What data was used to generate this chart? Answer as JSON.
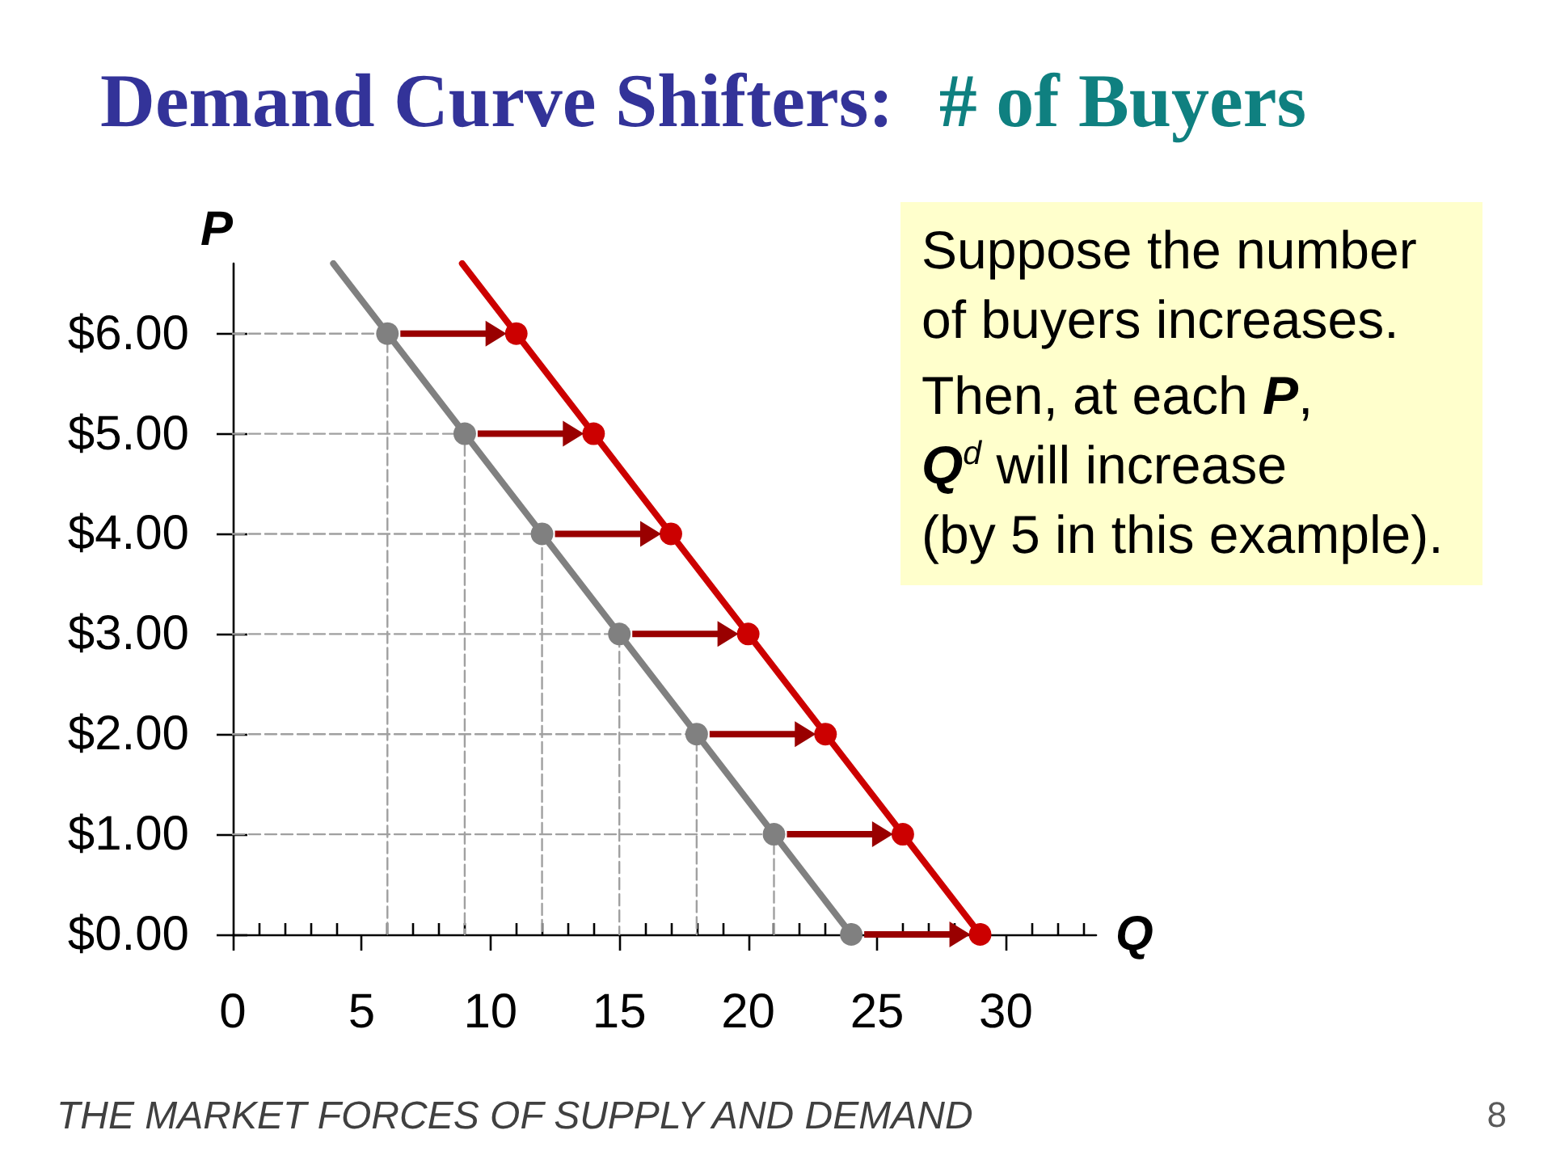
{
  "chart_data": {
    "type": "line",
    "title": "Demand Curve Shifters:",
    "subtitle": "# of Buyers",
    "xlabel": "Q",
    "ylabel": "P",
    "annotations": [
      "Suppose the number\nof buyers increases.",
      "Then, at each P,\nQ$^{d}$ will increase\n(by 5 in this example).",
      "THE MARKET FORCES OF SUPPLY AND DEMAND",
      "8"
    ],
    "xlim": [
      0,
      33.5
    ],
    "xticks": [
      0,
      {
        "value": 1,
        "label": null
      },
      {
        "value": 2,
        "label": null
      },
      {
        "value": 3,
        "label": null
      },
      {
        "value": 4,
        "label": null
      },
      5,
      {
        "value": 6,
        "label": null
      },
      {
        "value": 7,
        "label": null
      },
      {
        "value": 8,
        "label": null
      },
      {
        "value": 9,
        "label": null
      },
      10,
      {
        "value": 11,
        "label": null
      },
      {
        "value": 12,
        "label": null
      },
      {
        "value": 13,
        "label": null
      },
      {
        "value": 14,
        "label": null
      },
      15,
      {
        "value": 16,
        "label": null
      },
      {
        "value": 17,
        "label": null
      },
      {
        "value": 18,
        "label": null
      },
      {
        "value": 19,
        "label": null
      },
      20,
      {
        "value": 21,
        "label": null
      },
      {
        "value": 22,
        "label": null
      },
      {
        "value": 23,
        "label": null
      },
      {
        "value": 24,
        "label": null
      },
      25,
      {
        "value": 26,
        "label": null
      },
      {
        "value": 27,
        "label": null
      },
      {
        "value": 28,
        "label": null
      },
      {
        "value": 29,
        "label": null
      },
      30,
      {
        "value": 31,
        "label": null
      },
      {
        "value": 32,
        "label": null
      },
      {
        "value": 33,
        "label": null
      }
    ],
    "ylim": [
      0,
      6.7
    ],
    "yticks": [
      {
        "value": 0,
        "label": "$0.00"
      },
      {
        "value": 1,
        "label": "$1.00"
      },
      {
        "value": 2,
        "label": "$2.00"
      },
      {
        "value": 3,
        "label": "$3.00"
      },
      {
        "value": 4,
        "label": "$4.00"
      },
      {
        "value": 5,
        "label": "$5.00"
      },
      {
        "value": 6,
        "label": "$6.00"
      }
    ],
    "series": [
      {
        "color": "#a0a0a0",
        "line_style": "dashed",
        "marker": "none",
        "x": [
          0,
          6,
          6
        ],
        "values": [
          6,
          6,
          0
        ]
      },
      {
        "color": "#a0a0a0",
        "line_style": "dashed",
        "marker": "none",
        "x": [
          0,
          9,
          9
        ],
        "values": [
          5,
          5,
          0
        ]
      },
      {
        "color": "#a0a0a0",
        "line_style": "dashed",
        "marker": "none",
        "x": [
          0,
          12,
          12
        ],
        "values": [
          4,
          4,
          0
        ]
      },
      {
        "color": "#a0a0a0",
        "line_style": "dashed",
        "marker": "none",
        "x": [
          0,
          15,
          15
        ],
        "values": [
          3,
          3,
          0
        ]
      },
      {
        "color": "#a0a0a0",
        "line_style": "dashed",
        "marker": "none",
        "x": [
          0,
          18,
          18
        ],
        "values": [
          2,
          2,
          0
        ]
      },
      {
        "color": "#a0a0a0",
        "line_style": "dashed",
        "marker": "none",
        "x": [
          0,
          21,
          21
        ],
        "values": [
          1,
          1,
          0
        ]
      },
      {
        "color": "#808080",
        "marker": "none",
        "x": [
          3.9,
          24
        ],
        "values": [
          6.7,
          0
        ]
      },
      {
        "color": "#cc0000",
        "marker": "none",
        "x": [
          8.9,
          29
        ],
        "values": [
          6.7,
          0
        ]
      },
      {
        "type": "scatter",
        "color": "#808080",
        "marker": "circle",
        "x": [
          6,
          9,
          12,
          15,
          18,
          21,
          24
        ],
        "values": [
          6,
          5,
          4,
          3,
          2,
          1,
          0
        ]
      },
      {
        "type": "scatter",
        "color": "#cc0000",
        "marker": "circle",
        "x": [
          11,
          14,
          17,
          20,
          23,
          26,
          29
        ],
        "values": [
          6,
          5,
          4,
          3,
          2,
          1,
          0
        ]
      }
    ]
  }
}
